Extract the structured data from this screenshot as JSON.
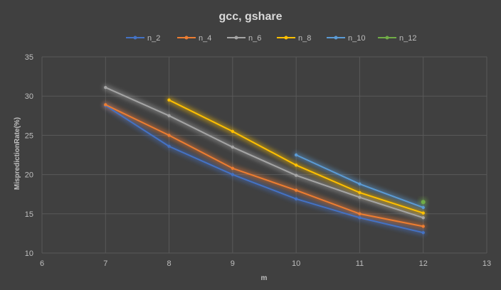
{
  "chart_data": {
    "type": "line",
    "title": "gcc, gshare",
    "xlabel": "m",
    "ylabel": "MispredictionRate(%)",
    "xlim": [
      6,
      13
    ],
    "ylim": [
      10,
      35
    ],
    "xticks": [
      "6",
      "7",
      "8",
      "9",
      "10",
      "11",
      "12",
      "13"
    ],
    "yticks": [
      "10",
      "15",
      "20",
      "25",
      "30",
      "35"
    ],
    "grid": true,
    "legend_position": "top",
    "series": [
      {
        "name": "n_2",
        "color": "#4472c4",
        "points": [
          [
            7,
            28.8
          ],
          [
            8,
            23.6
          ],
          [
            9,
            20.0
          ],
          [
            10,
            16.9
          ],
          [
            11,
            14.5
          ],
          [
            12,
            12.6
          ]
        ]
      },
      {
        "name": "n_4",
        "color": "#ed7d31",
        "points": [
          [
            7,
            28.9
          ],
          [
            8,
            25.0
          ],
          [
            9,
            20.8
          ],
          [
            10,
            18.0
          ],
          [
            11,
            15.0
          ],
          [
            12,
            13.4
          ]
        ]
      },
      {
        "name": "n_6",
        "color": "#a5a5a5",
        "points": [
          [
            7,
            31.1
          ],
          [
            8,
            27.5
          ],
          [
            9,
            23.5
          ],
          [
            10,
            19.9
          ],
          [
            11,
            17.1
          ],
          [
            12,
            14.5
          ]
        ]
      },
      {
        "name": "n_8",
        "color": "#ffc000",
        "points": [
          [
            8,
            29.5
          ],
          [
            9,
            25.5
          ],
          [
            10,
            21.2
          ],
          [
            11,
            17.7
          ],
          [
            12,
            15.1
          ]
        ]
      },
      {
        "name": "n_10",
        "color": "#5b9bd5",
        "points": [
          [
            10,
            22.5
          ],
          [
            11,
            18.8
          ],
          [
            12,
            15.8
          ]
        ]
      },
      {
        "name": "n_12",
        "color": "#70ad47",
        "points": [
          [
            12,
            16.5
          ]
        ]
      }
    ]
  }
}
